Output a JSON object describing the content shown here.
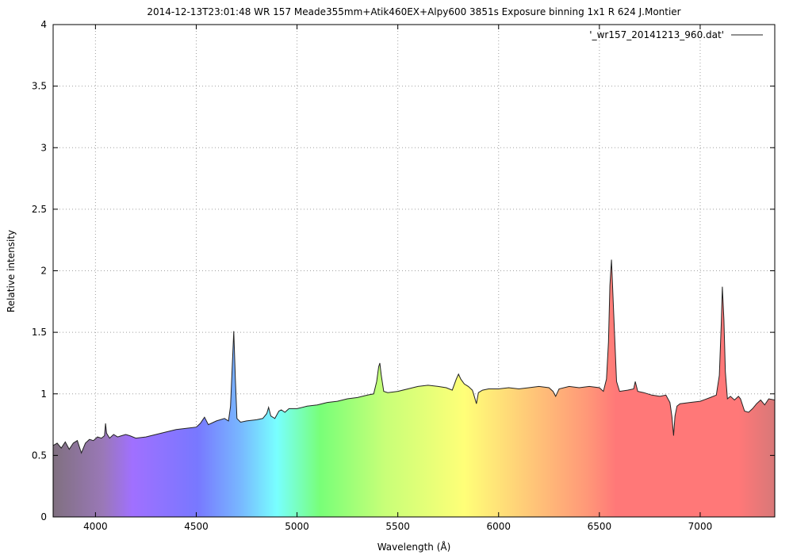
{
  "chart_data": {
    "type": "area",
    "title": "2014-12-13T23:01:48 WR 157 Meade355mm+Atik460EX+Alpy600 3851s Exposure binning 1x1 R 624 J.Montier",
    "xlabel": "Wavelength (Å)",
    "ylabel": "Relative intensity",
    "xlim": [
      3790,
      7370
    ],
    "ylim": [
      0,
      4
    ],
    "x_ticks": [
      4000,
      4500,
      5000,
      5500,
      6000,
      6500,
      7000
    ],
    "y_ticks": [
      0,
      0.5,
      1,
      1.5,
      2,
      2.5,
      3,
      3.5,
      4
    ],
    "y_tick_labels": [
      "0",
      "0.5",
      "1",
      "1.5",
      "2",
      "2.5",
      "3",
      "3.5",
      "4"
    ],
    "grid": true,
    "legend_position": "top-right",
    "fill_style": "visible-spectrum rainbow gradient under the curve",
    "line_color": "#222222",
    "series": [
      {
        "name": "'_wr157_20141213_960.dat'",
        "x": [
          3790,
          3810,
          3830,
          3850,
          3870,
          3890,
          3910,
          3930,
          3950,
          3970,
          3990,
          4010,
          4030,
          4045,
          4050,
          4055,
          4070,
          4090,
          4110,
          4130,
          4150,
          4170,
          4200,
          4250,
          4300,
          4350,
          4400,
          4450,
          4500,
          4520,
          4541,
          4560,
          4600,
          4640,
          4660,
          4670,
          4678,
          4686,
          4694,
          4702,
          4720,
          4750,
          4800,
          4830,
          4850,
          4859,
          4870,
          4890,
          4910,
          4922,
          4940,
          4960,
          5000,
          5050,
          5100,
          5150,
          5200,
          5250,
          5300,
          5350,
          5380,
          5395,
          5405,
          5411,
          5418,
          5430,
          5450,
          5500,
          5550,
          5600,
          5650,
          5700,
          5740,
          5770,
          5790,
          5801,
          5812,
          5830,
          5850,
          5870,
          5876,
          5890,
          5900,
          5920,
          5950,
          6000,
          6050,
          6100,
          6150,
          6200,
          6250,
          6270,
          6283,
          6300,
          6350,
          6400,
          6450,
          6500,
          6520,
          6535,
          6545,
          6552,
          6560,
          6570,
          6585,
          6600,
          6640,
          6670,
          6678,
          6690,
          6720,
          6760,
          6800,
          6830,
          6850,
          6860,
          6868,
          6875,
          6885,
          6900,
          6950,
          7000,
          7050,
          7080,
          7095,
          7105,
          7110,
          7118,
          7125,
          7135,
          7150,
          7170,
          7190,
          7200,
          7220,
          7240,
          7260,
          7280,
          7300,
          7320,
          7340,
          7370
        ],
        "y": [
          0.58,
          0.6,
          0.56,
          0.61,
          0.55,
          0.6,
          0.62,
          0.52,
          0.6,
          0.63,
          0.62,
          0.65,
          0.64,
          0.66,
          0.76,
          0.68,
          0.64,
          0.67,
          0.65,
          0.66,
          0.67,
          0.66,
          0.64,
          0.65,
          0.67,
          0.69,
          0.71,
          0.72,
          0.73,
          0.76,
          0.81,
          0.75,
          0.78,
          0.8,
          0.78,
          0.9,
          1.2,
          1.51,
          1.12,
          0.8,
          0.77,
          0.78,
          0.79,
          0.8,
          0.84,
          0.89,
          0.82,
          0.8,
          0.86,
          0.87,
          0.85,
          0.88,
          0.88,
          0.9,
          0.91,
          0.93,
          0.94,
          0.96,
          0.97,
          0.99,
          1.0,
          1.1,
          1.22,
          1.25,
          1.15,
          1.02,
          1.01,
          1.02,
          1.04,
          1.06,
          1.07,
          1.06,
          1.05,
          1.03,
          1.12,
          1.16,
          1.12,
          1.08,
          1.06,
          1.03,
          1.0,
          0.92,
          1.01,
          1.03,
          1.04,
          1.04,
          1.05,
          1.04,
          1.05,
          1.06,
          1.05,
          1.02,
          0.98,
          1.04,
          1.06,
          1.05,
          1.06,
          1.05,
          1.02,
          1.12,
          1.42,
          1.88,
          2.09,
          1.7,
          1.1,
          1.02,
          1.03,
          1.04,
          1.1,
          1.02,
          1.01,
          0.99,
          0.98,
          0.99,
          0.93,
          0.81,
          0.66,
          0.82,
          0.9,
          0.92,
          0.93,
          0.94,
          0.97,
          0.99,
          1.15,
          1.58,
          1.87,
          1.6,
          1.18,
          0.96,
          0.98,
          0.95,
          0.98,
          0.96,
          0.86,
          0.85,
          0.88,
          0.92,
          0.95,
          0.91,
          0.96,
          0.95
        ]
      }
    ]
  }
}
